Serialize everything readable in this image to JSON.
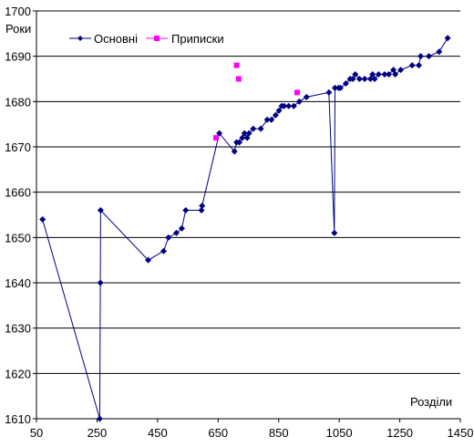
{
  "chart_data": {
    "type": "scatter",
    "ylabel": "Роки",
    "xlabel": "Розділи",
    "xlim": [
      50,
      1450
    ],
    "ylim": [
      1610,
      1700
    ],
    "xticks": [
      50,
      250,
      450,
      650,
      850,
      1050,
      1250,
      1450
    ],
    "yticks": [
      1610,
      1620,
      1630,
      1640,
      1650,
      1660,
      1670,
      1680,
      1690,
      1700
    ],
    "grid": "horizontal",
    "legend_position": "top-left",
    "series": [
      {
        "name": "Основні",
        "color": "#000080",
        "marker": "diamond",
        "line": true,
        "points": [
          [
            70,
            1654
          ],
          [
            259,
            1610
          ],
          [
            261,
            1640
          ],
          [
            262,
            1656
          ],
          [
            419,
            1645
          ],
          [
            470,
            1647
          ],
          [
            486,
            1650
          ],
          [
            512,
            1651
          ],
          [
            530,
            1652
          ],
          [
            543,
            1656
          ],
          [
            595,
            1656
          ],
          [
            597,
            1657
          ],
          [
            654,
            1673
          ],
          [
            704,
            1669
          ],
          [
            711,
            1671
          ],
          [
            720,
            1671
          ],
          [
            730,
            1672
          ],
          [
            737,
            1673
          ],
          [
            746,
            1672
          ],
          [
            752,
            1673
          ],
          [
            766,
            1674
          ],
          [
            791,
            1674
          ],
          [
            812,
            1676
          ],
          [
            826,
            1676
          ],
          [
            840,
            1677
          ],
          [
            851,
            1678
          ],
          [
            860,
            1679
          ],
          [
            868,
            1679
          ],
          [
            883,
            1679
          ],
          [
            900,
            1679
          ],
          [
            918,
            1680
          ],
          [
            942,
            1681
          ],
          [
            1016,
            1682
          ],
          [
            1034,
            1651
          ],
          [
            1036,
            1683
          ],
          [
            1048,
            1683
          ],
          [
            1054,
            1683
          ],
          [
            1072,
            1684
          ],
          [
            1086,
            1685
          ],
          [
            1095,
            1685
          ],
          [
            1103,
            1686
          ],
          [
            1117,
            1685
          ],
          [
            1134,
            1685
          ],
          [
            1153,
            1685
          ],
          [
            1160,
            1686
          ],
          [
            1167,
            1685
          ],
          [
            1180,
            1686
          ],
          [
            1200,
            1686
          ],
          [
            1214,
            1686
          ],
          [
            1229,
            1687
          ],
          [
            1235,
            1686
          ],
          [
            1253,
            1687
          ],
          [
            1291,
            1688
          ],
          [
            1313,
            1688
          ],
          [
            1319,
            1690
          ],
          [
            1346,
            1690
          ],
          [
            1380,
            1691
          ],
          [
            1408,
            1694
          ]
        ]
      },
      {
        "name": "Приписки",
        "color": "#ff00ff",
        "marker": "square",
        "line": false,
        "points": [
          [
            643,
            1672
          ],
          [
            711,
            1688
          ],
          [
            718,
            1685
          ],
          [
            911,
            1682
          ]
        ]
      }
    ]
  }
}
